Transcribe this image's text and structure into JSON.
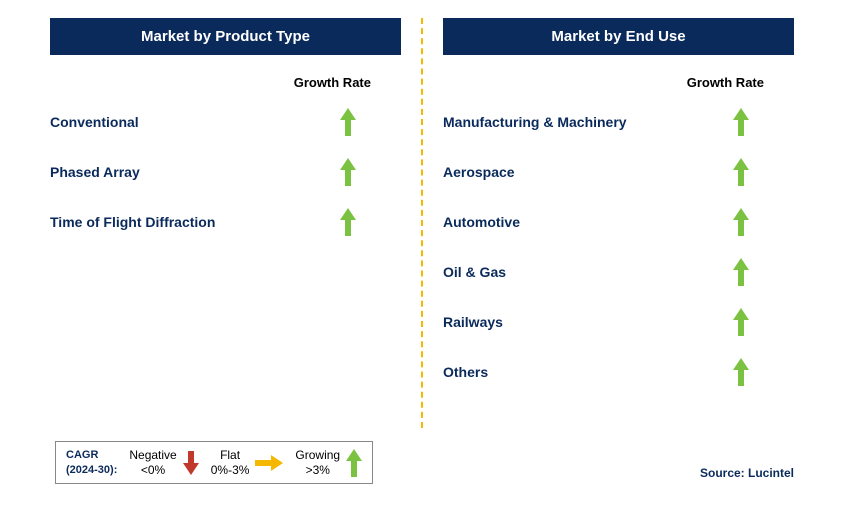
{
  "leftPanel": {
    "title": "Market by Product Type",
    "growthRateLabel": "Growth Rate",
    "items": [
      {
        "label": "Conventional",
        "growth": "growing"
      },
      {
        "label": "Phased Array",
        "growth": "growing"
      },
      {
        "label": "Time of Flight Diffraction",
        "growth": "growing"
      }
    ]
  },
  "rightPanel": {
    "title": "Market by End Use",
    "growthRateLabel": "Growth Rate",
    "items": [
      {
        "label": "Manufacturing & Machinery",
        "growth": "growing"
      },
      {
        "label": "Aerospace",
        "growth": "growing"
      },
      {
        "label": "Automotive",
        "growth": "growing"
      },
      {
        "label": "Oil & Gas",
        "growth": "growing"
      },
      {
        "label": "Railways",
        "growth": "growing"
      },
      {
        "label": "Others",
        "growth": "growing"
      }
    ]
  },
  "legend": {
    "titleLine1": "CAGR",
    "titleLine2": "(2024-30):",
    "negative": {
      "label": "Negative",
      "range": "<0%"
    },
    "flat": {
      "label": "Flat",
      "range": "0%-3%"
    },
    "growing": {
      "label": "Growing",
      "range": ">3%"
    }
  },
  "source": "Source: Lucintel",
  "colors": {
    "headerBg": "#0a2a5c",
    "growingArrow": "#7cc242",
    "flatArrow": "#f5b800",
    "negativeArrow": "#c0392b",
    "dividerColor": "#f5b800",
    "textPrimary": "#0a2a5c"
  },
  "chartType": "infographic"
}
